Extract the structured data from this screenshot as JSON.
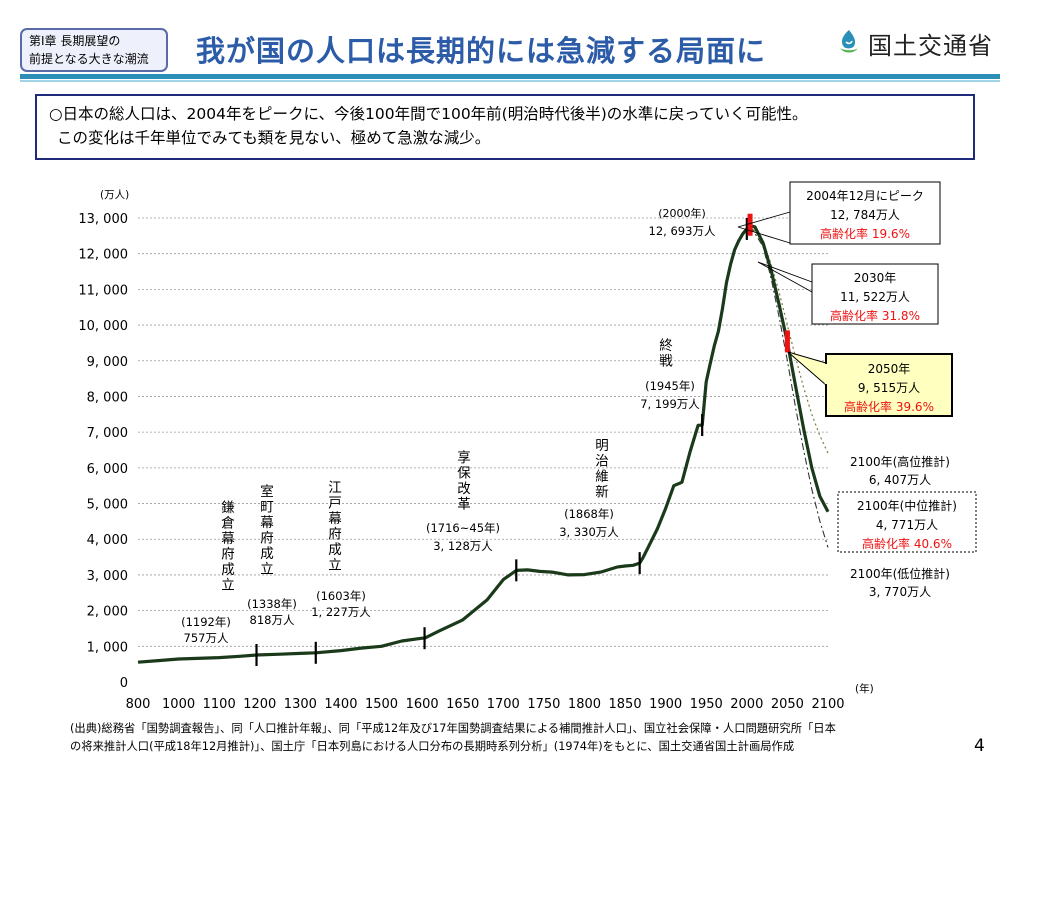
{
  "header": {
    "chapter_line1": "第Ⅰ章 長期展望の",
    "chapter_line2": "前提となる大きな潮流",
    "title": "我が国の人口は長期的には急減する局面に",
    "logo_text": "国土交通省",
    "accent_color": "#2c5ca8",
    "rule_color": "#2b8fb8"
  },
  "summary": {
    "line1": "○日本の総人口は、2004年をピークに、今後100年間で100年前(明治時代後半)の水準に戻っていく可能性。",
    "line2": "この変化は千年単位でみても類を見ない、極めて急激な減少。"
  },
  "chart_data": {
    "type": "line",
    "ylabel": "(万人)",
    "xlabel": "(年)",
    "xlim": [
      800,
      2100
    ],
    "ylim": [
      0,
      13000
    ],
    "x_ticks": [
      800,
      1000,
      1100,
      1200,
      1300,
      1400,
      1500,
      1600,
      1650,
      1700,
      1750,
      1800,
      1850,
      1900,
      1950,
      2000,
      2050,
      2100
    ],
    "x_tick_labels": [
      "800",
      "1000",
      "1100",
      "1200",
      "1300",
      "1400",
      "1500",
      "1600",
      "1650",
      "1700",
      "1750",
      "1800",
      "1850",
      "1900",
      "1950",
      "2000",
      "2050",
      "2100"
    ],
    "y_ticks": [
      0,
      1000,
      2000,
      3000,
      4000,
      5000,
      6000,
      7000,
      8000,
      9000,
      10000,
      11000,
      12000,
      13000
    ],
    "y_tick_labels": [
      "0",
      "1, 000",
      "2, 000",
      "3, 000",
      "4, 000",
      "5, 000",
      "6, 000",
      "7, 000",
      "8, 000",
      "9, 000",
      "10, 000",
      "11, 000",
      "12, 000",
      "13, 000"
    ],
    "grid": "horizontal dashed",
    "colors": {
      "main": "#1a3a1a",
      "high": "#7a7a3a",
      "low": "#333333",
      "marker_red": "#ee1111",
      "text_red": "#ee1111",
      "callout_fill": "#ffffc0"
    },
    "series": [
      {
        "key": "main",
        "x": [
          800,
          900,
          1000,
          1100,
          1150,
          1192,
          1250,
          1300,
          1338,
          1400,
          1450,
          1500,
          1550,
          1600,
          1603,
          1620,
          1650,
          1680,
          1700,
          1716,
          1730,
          1745,
          1760,
          1780,
          1800,
          1820,
          1840,
          1850,
          1860,
          1868,
          1872,
          1880,
          1890,
          1900,
          1910,
          1920,
          1930,
          1940,
          1945,
          1950,
          1955,
          1960,
          1965,
          1970,
          1975,
          1980,
          1985,
          1990,
          1995,
          2000,
          2004,
          2010,
          2020,
          2030,
          2040,
          2050,
          2060,
          2070,
          2080,
          2090,
          2100
        ],
        "y": [
          555,
          600,
          644,
          684,
          720,
          757,
          780,
          800,
          818,
          880,
          950,
          1000,
          1150,
          1227,
          1227,
          1420,
          1740,
          2300,
          2870,
          3128,
          3140,
          3100,
          3080,
          3000,
          3010,
          3080,
          3220,
          3250,
          3270,
          3330,
          3480,
          3840,
          4300,
          4860,
          5500,
          5596,
          6445,
          7193,
          7199,
          8412,
          8928,
          9430,
          9828,
          10467,
          11194,
          11706,
          12105,
          12361,
          12557,
          12693,
          12784,
          12750,
          12300,
          11522,
          10550,
          9515,
          8300,
          7100,
          6000,
          5200,
          4771
        ]
      },
      {
        "key": "high",
        "x": [
          2004,
          2020,
          2030,
          2040,
          2050,
          2060,
          2070,
          2080,
          2090,
          2100
        ],
        "y": [
          12784,
          12350,
          11700,
          10900,
          10000,
          9100,
          8250,
          7500,
          6900,
          6407
        ]
      },
      {
        "key": "low",
        "x": [
          2004,
          2020,
          2030,
          2040,
          2050,
          2060,
          2070,
          2080,
          2090,
          2100
        ],
        "y": [
          12784,
          12200,
          11300,
          10200,
          9000,
          7700,
          6500,
          5400,
          4500,
          3770
        ]
      }
    ],
    "tick_marks": [
      {
        "x": 1192,
        "y": 757
      },
      {
        "x": 1338,
        "y": 818
      },
      {
        "x": 1603,
        "y": 1227
      },
      {
        "x": 1716,
        "y": 3128
      },
      {
        "x": 1868,
        "y": 3330
      },
      {
        "x": 1945,
        "y": 7199
      },
      {
        "x": 2000,
        "y": 12693
      }
    ],
    "red_markers": [
      {
        "x": 2004,
        "y": 12784
      },
      {
        "x": 2050,
        "y": 9515
      }
    ],
    "event_labels": {
      "kamakura": {
        "vertical": "鎌倉幕府成立",
        "year": "(1192年)",
        "value": "757万人"
      },
      "muromachi": {
        "vertical": "室町幕府成立",
        "year": "(1338年)",
        "value": "818万人"
      },
      "edo": {
        "vertical": "江戸幕府成立",
        "year": "(1603年)",
        "value": "1, 227万人"
      },
      "kyoho": {
        "vertical": "享保改革",
        "year": "(1716~45年)",
        "value": "3, 128万人"
      },
      "meiji": {
        "vertical": "明治維新",
        "year": "(1868年)",
        "value": "3, 330万人"
      },
      "shusen": {
        "vertical": "終戦",
        "year": "(1945年)",
        "value": "7, 199万人"
      },
      "y2000": {
        "year": "(2000年)",
        "value": "12, 693万人"
      }
    },
    "callouts": {
      "peak": {
        "line1": "2004年12月にピーク",
        "line2": "12, 784万人",
        "line3": "高齢化率 19.6%"
      },
      "y2030": {
        "line1": "2030年",
        "line2": "11, 522万人",
        "line3": "高齢化率 31.8%"
      },
      "y2050": {
        "line1": "2050年",
        "line2": "9, 515万人",
        "line3": "高齢化率 39.6%"
      },
      "high": {
        "line1": "2100年(高位推計)",
        "line2": "6, 407万人"
      },
      "mid": {
        "line1": "2100年(中位推計)",
        "line2": "4, 771万人",
        "line3": "高齢化率 40.6%"
      },
      "low": {
        "line1": "2100年(低位推計)",
        "line2": "3, 770万人"
      }
    }
  },
  "footer": {
    "source_line1": "(出典)総務省「国勢調査報告」、同「人口推計年報」、同「平成12年及び17年国勢調査結果による補間推計人口」、国立社会保障・人口問題研究所「日本",
    "source_line2": "の将来推計人口(平成18年12月推計)」、国土庁「日本列島における人口分布の長期時系列分析」(1974年)をもとに、国土交通省国土計画局作成",
    "page_number": "4"
  }
}
